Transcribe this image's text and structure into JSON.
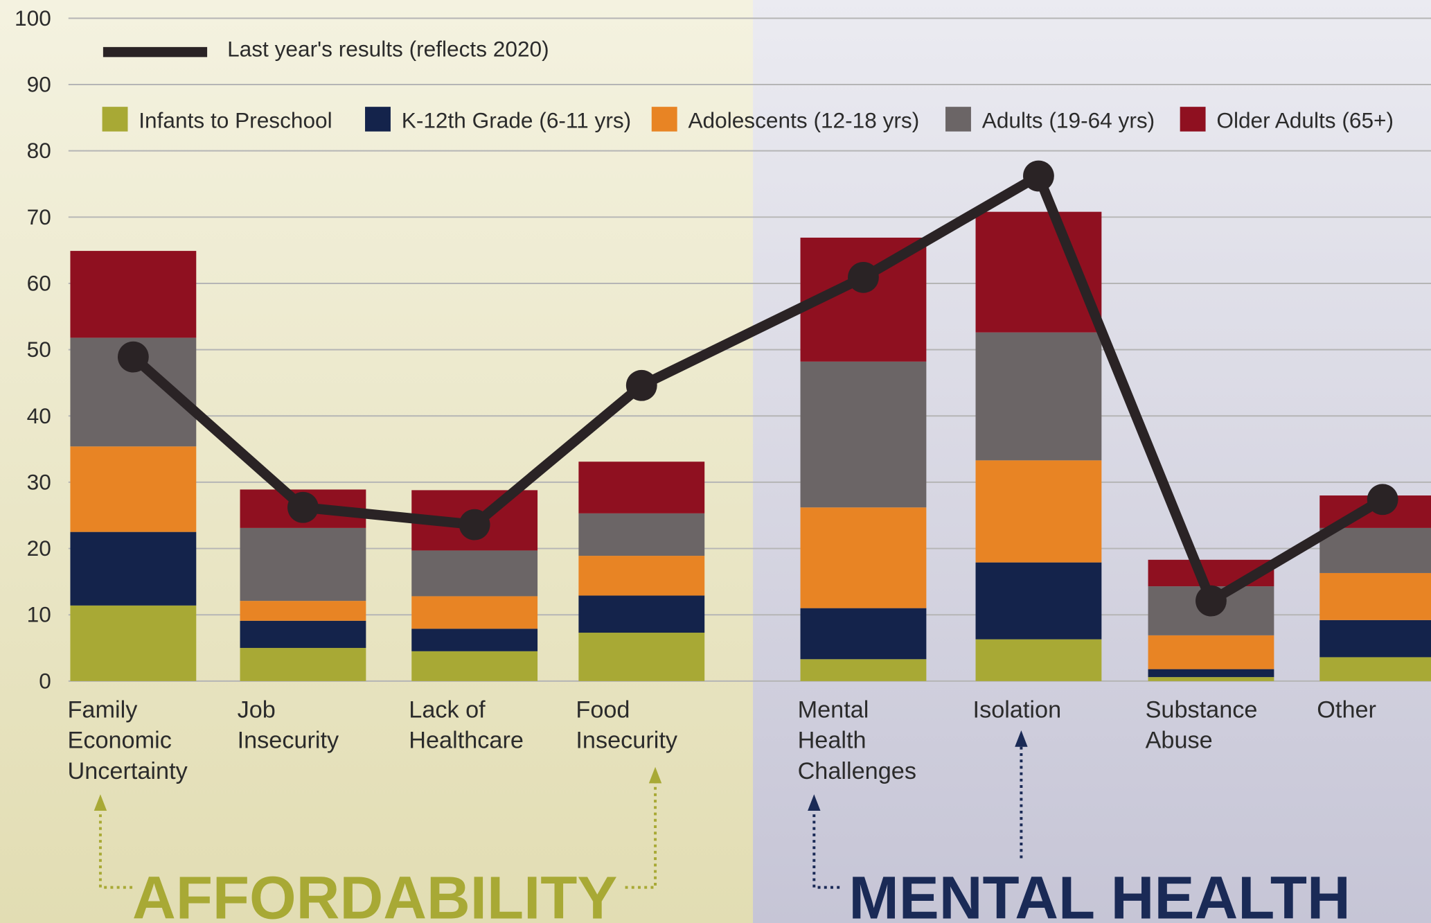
{
  "chart_data": {
    "type": "bar",
    "stacked": true,
    "categories": [
      "Family\nEconomic\nUncertainty",
      "Job\nInsecurity",
      "Lack of\nHealthcare",
      "Food\nInsecurity",
      "Mental\nHealth\nChallenges",
      "Isolation",
      "Substance\nAbuse",
      "Other"
    ],
    "series": [
      {
        "name": "Infants to Preschool",
        "color": "#a8a935",
        "values": [
          11.4,
          5.0,
          4.5,
          7.3,
          3.3,
          6.3,
          0.6,
          3.6
        ]
      },
      {
        "name": "K-12th Grade (6-11 yrs)",
        "color": "#14234b",
        "values": [
          11.1,
          4.1,
          3.4,
          5.6,
          7.7,
          11.6,
          1.2,
          5.6
        ]
      },
      {
        "name": "Adolescents (12-18 yrs)",
        "color": "#e88424",
        "values": [
          12.9,
          3.0,
          4.9,
          6.0,
          15.2,
          15.4,
          5.1,
          7.1
        ]
      },
      {
        "name": "Adults (19-64 yrs)",
        "color": "#6b6566",
        "values": [
          16.4,
          11.0,
          6.9,
          6.4,
          22.0,
          19.3,
          7.4,
          6.8
        ]
      },
      {
        "name": "Older Adults (65+)",
        "color": "#8f1020",
        "values": [
          13.1,
          5.8,
          9.1,
          7.8,
          18.7,
          18.2,
          4.0,
          4.9
        ]
      }
    ],
    "line_series": {
      "name": "Last year's results (reflects 2020)",
      "color": "#2a2325",
      "values": [
        48.9,
        26.2,
        23.6,
        44.6,
        60.9,
        76.2,
        12.1,
        27.4
      ]
    },
    "annotations": [
      {
        "text": "AFFORDABILITY",
        "color": "#a8a935"
      },
      {
        "text": "MENTAL HEALTH",
        "color": "#1a2a56"
      }
    ],
    "ylim": [
      0,
      100
    ],
    "yticks": [
      0,
      10,
      20,
      30,
      40,
      50,
      60,
      70,
      80,
      90,
      100
    ],
    "grid": true
  }
}
